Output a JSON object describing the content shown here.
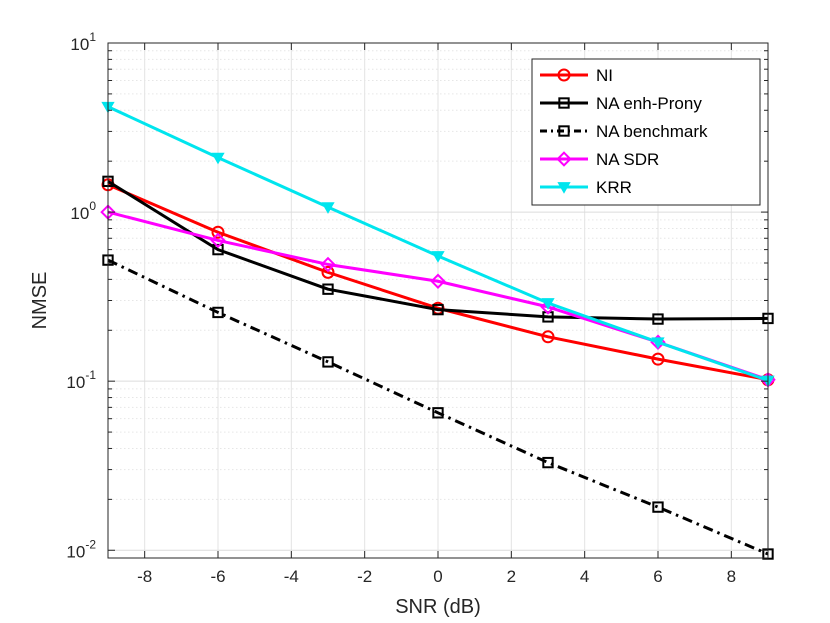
{
  "chart_data": {
    "type": "line",
    "x": [
      -9,
      -6,
      -3,
      0,
      3,
      6,
      9
    ],
    "xlabel": "SNR (dB)",
    "ylabel": "NMSE",
    "xlim": [
      -9,
      9
    ],
    "ylim": [
      0.009,
      10
    ],
    "yscale": "log",
    "xticks": [
      {
        "value": -8,
        "label": "-8"
      },
      {
        "value": -6,
        "label": "-6"
      },
      {
        "value": -4,
        "label": "-4"
      },
      {
        "value": -2,
        "label": "-2"
      },
      {
        "value": 0,
        "label": "0"
      },
      {
        "value": 2,
        "label": "2"
      },
      {
        "value": 4,
        "label": "4"
      },
      {
        "value": 6,
        "label": "6"
      },
      {
        "value": 8,
        "label": "8"
      }
    ],
    "yticks": [
      {
        "value": 0.01,
        "base": "10",
        "exp": "-2"
      },
      {
        "value": 0.1,
        "base": "10",
        "exp": "-1"
      },
      {
        "value": 1,
        "base": "10",
        "exp": "0"
      },
      {
        "value": 10,
        "base": "10",
        "exp": "1"
      }
    ],
    "grid": true,
    "legend_position": "top-right",
    "series": [
      {
        "name": "NI",
        "color": "#ff0000",
        "marker": "circle",
        "linestyle": "solid",
        "values": [
          1.45,
          0.76,
          0.44,
          0.27,
          0.183,
          0.135,
          0.102
        ]
      },
      {
        "name": "NA enh-Prony",
        "color": "#000000",
        "marker": "square",
        "linestyle": "solid",
        "values": [
          1.52,
          0.6,
          0.35,
          0.265,
          0.24,
          0.233,
          0.235
        ]
      },
      {
        "name": "NA benchmark",
        "color": "#000000",
        "marker": "square",
        "linestyle": "dashdot",
        "values": [
          0.52,
          0.255,
          0.13,
          0.065,
          0.033,
          0.018,
          0.0095
        ]
      },
      {
        "name": "NA SDR",
        "color": "#ff00ff",
        "marker": "diamond",
        "linestyle": "solid",
        "values": [
          1.0,
          0.68,
          0.49,
          0.39,
          0.275,
          0.17,
          0.102
        ]
      },
      {
        "name": "KRR",
        "color": "#00e5ee",
        "marker": "triangle-down",
        "linestyle": "solid",
        "values": [
          4.2,
          2.1,
          1.07,
          0.55,
          0.29,
          0.17,
          0.101
        ]
      }
    ]
  }
}
